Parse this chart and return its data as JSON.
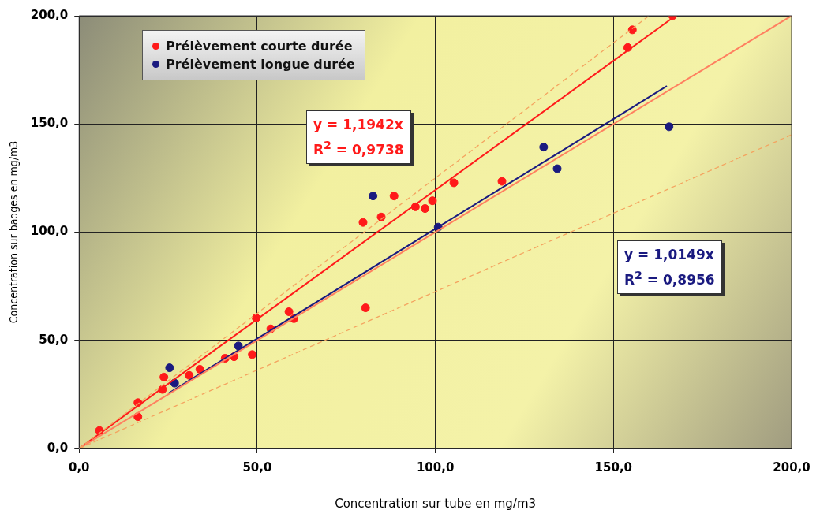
{
  "chart_data": {
    "type": "scatter",
    "xlabel": "Concentration sur tube en mg/m3",
    "ylabel": "Concentration sur badges en mg/m3",
    "xlim": [
      0,
      200
    ],
    "ylim": [
      0,
      200
    ],
    "xticks": [
      {
        "value": 0,
        "label": "0,0"
      },
      {
        "value": 50,
        "label": "50,0"
      },
      {
        "value": 100,
        "label": "100,0"
      },
      {
        "value": 150,
        "label": "150,0"
      },
      {
        "value": 200,
        "label": "200,0"
      }
    ],
    "yticks": [
      {
        "value": 0,
        "label": "0,0"
      },
      {
        "value": 50,
        "label": "50,0"
      },
      {
        "value": 100,
        "label": "100,0"
      },
      {
        "value": 150,
        "label": "150,0"
      },
      {
        "value": 200,
        "label": "200,0"
      }
    ],
    "grid": true,
    "legend": "top left",
    "marker": "circle",
    "annotations": [
      "y = 1,1942x\nR$^{2}$ = 0,9738",
      "y = 1,0149x\nR$^{2}$ = 0,8956"
    ],
    "series": [
      {
        "name": "Prélèvement courte durée",
        "color": "#ff1a1a",
        "x": [
          5.7,
          16.5,
          16.5,
          23.4,
          23.8,
          30.9,
          33.9,
          41,
          43.5,
          48.6,
          49.7,
          53.8,
          58.9,
          60.3,
          80.4,
          79.7,
          84.8,
          88.4,
          94.4,
          97.1,
          99.2,
          105.2,
          118.7,
          154,
          155.3,
          166.6
        ],
        "values": [
          8.3,
          21.2,
          14.7,
          27.3,
          33,
          33.8,
          36.6,
          41.7,
          42.4,
          43.4,
          60.3,
          55.3,
          63.2,
          60,
          65,
          104.5,
          107,
          116.7,
          111.7,
          110.9,
          114.5,
          122.8,
          123.5,
          185.3,
          193.5,
          200
        ]
      },
      {
        "name": "Prélèvement longue durée",
        "color": "#1a1a80",
        "x": [
          25.4,
          26.8,
          44.7,
          82.5,
          100.8,
          130.4,
          134.2,
          165.6
        ],
        "values": [
          37.3,
          30.2,
          47.4,
          116.7,
          102.3,
          139.3,
          129.3,
          148.7
        ]
      },
      {
        "type": "line",
        "color": "#ff1a1a",
        "x": [
          0,
          166.6
        ],
        "values": [
          0,
          199
        ],
        "marker": "none",
        "line_style": "solid"
      },
      {
        "type": "line",
        "color": "#1a1a80",
        "x": [
          25,
          165
        ],
        "values": [
          25.4,
          167.5
        ],
        "marker": "none",
        "line_style": "solid"
      },
      {
        "type": "line",
        "color": "#ff8060",
        "x": [
          0,
          200
        ],
        "values": [
          0,
          200
        ],
        "marker": "none",
        "line_style": "solid"
      },
      {
        "type": "line",
        "color": "#f4a460",
        "x": [
          0,
          160
        ],
        "values": [
          0,
          200
        ],
        "marker": "none",
        "line_style": "dashed"
      },
      {
        "type": "line",
        "color": "#f4a460",
        "x": [
          0,
          200
        ],
        "values": [
          0,
          145
        ],
        "marker": "none",
        "line_style": "dashed"
      }
    ]
  }
}
